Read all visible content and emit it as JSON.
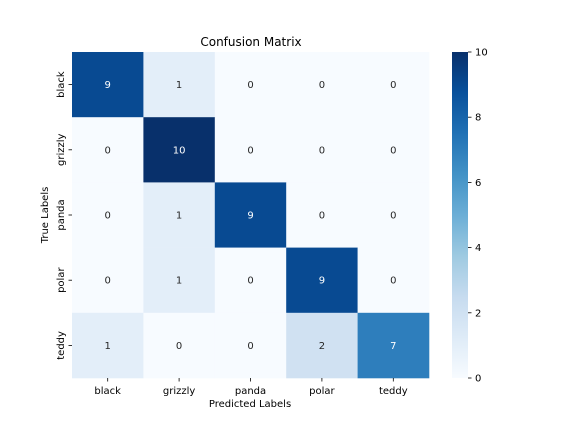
{
  "chart_data": {
    "type": "heatmap",
    "title": "Confusion Matrix",
    "xlabel": "Predicted Labels",
    "ylabel": "True Labels",
    "x_categories": [
      "black",
      "grizzly",
      "panda",
      "polar",
      "teddy"
    ],
    "y_categories": [
      "black",
      "grizzly",
      "panda",
      "polar",
      "teddy"
    ],
    "values": [
      [
        9,
        1,
        0,
        0,
        0
      ],
      [
        0,
        10,
        0,
        0,
        0
      ],
      [
        0,
        1,
        9,
        0,
        0
      ],
      [
        0,
        1,
        0,
        9,
        0
      ],
      [
        1,
        0,
        0,
        2,
        7
      ]
    ],
    "colorbar": {
      "min": 0,
      "max": 10,
      "ticks": [
        "0",
        "2",
        "4",
        "6",
        "8",
        "10"
      ],
      "colormap": "Blues"
    }
  }
}
